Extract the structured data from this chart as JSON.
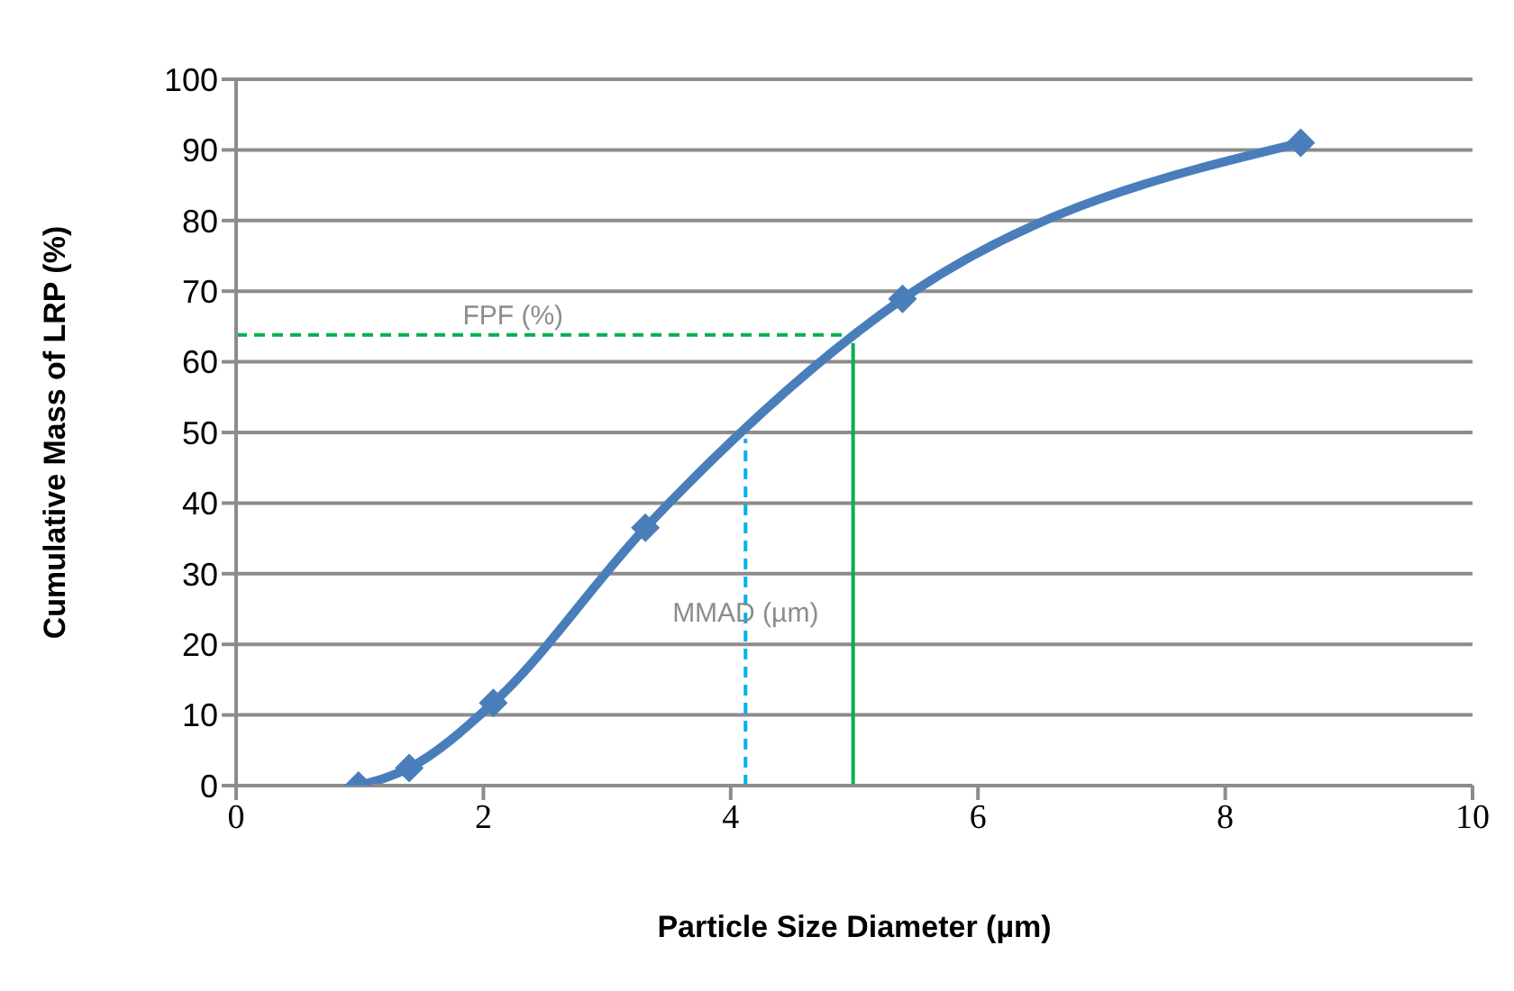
{
  "chart_data": {
    "type": "line",
    "xlabel": "Particle Size Diameter (µm)",
    "ylabel": "Cumulative Mass of LRP (%)",
    "x": [
      0.99,
      1.4,
      2.08,
      3.31,
      5.39,
      8.61
    ],
    "series": [
      {
        "color": "#4a7ebb",
        "values": [
          0,
          2.5,
          11.7,
          36.5,
          68.9,
          91
        ]
      }
    ],
    "xlim": [
      0,
      10
    ],
    "xticks": [
      0,
      2,
      4,
      6,
      8,
      10
    ],
    "ylim": [
      0,
      100
    ],
    "yticks": [
      0,
      10,
      20,
      30,
      40,
      50,
      60,
      70,
      80,
      90,
      100
    ],
    "grid": "y",
    "marker": "diamond",
    "line_style": "solid",
    "ref_lines": [
      {
        "axis": "y",
        "value": 63.8,
        "label": "FPF (%)",
        "color": "#00b050",
        "line_style": "dashed"
      },
      {
        "axis": "x",
        "value": 4.12,
        "label": "MMAD (µm)",
        "color": "#00b0f0",
        "line_style": "dashed"
      },
      {
        "axis": "x",
        "value": 4.99,
        "color": "#00b050",
        "line_style": "solid"
      }
    ]
  }
}
